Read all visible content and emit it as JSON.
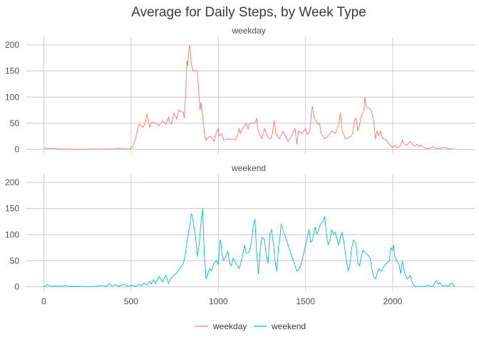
{
  "chart_data": {
    "type": "line",
    "title": "Average for Daily Steps, by Week Type",
    "xlabel": "",
    "ylabel": "",
    "xlim": [
      0,
      2355
    ],
    "ylim": [
      0,
      210
    ],
    "x_ticks": [
      0,
      500,
      1000,
      1500,
      2000
    ],
    "y_ticks": [
      0,
      50,
      100,
      150,
      200
    ],
    "legend_position": "bottom",
    "colors": {
      "weekday": "#F8766D",
      "weekend": "#00BFC4"
    },
    "panels": [
      {
        "name": "weekday",
        "points": [
          [
            0,
            2.3
          ],
          [
            100,
            0.5
          ],
          [
            200,
            0.3
          ],
          [
            300,
            0.4
          ],
          [
            400,
            0.8
          ],
          [
            430,
            2.2
          ],
          [
            460,
            0.5
          ],
          [
            490,
            1.0
          ],
          [
            500,
            2.5
          ],
          [
            510,
            5
          ],
          [
            525,
            20
          ],
          [
            545,
            48
          ],
          [
            570,
            42
          ],
          [
            585,
            55
          ],
          [
            590,
            68
          ],
          [
            600,
            55
          ],
          [
            605,
            42
          ],
          [
            620,
            52
          ],
          [
            640,
            50
          ],
          [
            660,
            45
          ],
          [
            680,
            55
          ],
          [
            700,
            48
          ],
          [
            715,
            62
          ],
          [
            720,
            52
          ],
          [
            730,
            48
          ],
          [
            745,
            70
          ],
          [
            760,
            58
          ],
          [
            775,
            75
          ],
          [
            800,
            70
          ],
          [
            805,
            60
          ],
          [
            815,
            120
          ],
          [
            820,
            170
          ],
          [
            825,
            160
          ],
          [
            830,
            185
          ],
          [
            835,
            200
          ],
          [
            840,
            190
          ],
          [
            845,
            165
          ],
          [
            855,
            150
          ],
          [
            880,
            150
          ],
          [
            890,
            100
          ],
          [
            895,
            75
          ],
          [
            900,
            90
          ],
          [
            910,
            65
          ],
          [
            920,
            30
          ],
          [
            930,
            17
          ],
          [
            940,
            22
          ],
          [
            955,
            25
          ],
          [
            975,
            15
          ],
          [
            985,
            28
          ],
          [
            1000,
            40
          ],
          [
            1005,
            25
          ],
          [
            1020,
            30
          ],
          [
            1030,
            18
          ],
          [
            1060,
            20
          ],
          [
            1100,
            18
          ],
          [
            1120,
            40
          ],
          [
            1125,
            30
          ],
          [
            1140,
            40
          ],
          [
            1160,
            50
          ],
          [
            1170,
            38
          ],
          [
            1180,
            50
          ],
          [
            1210,
            50
          ],
          [
            1220,
            60
          ],
          [
            1225,
            40
          ],
          [
            1235,
            30
          ],
          [
            1250,
            20
          ],
          [
            1265,
            40
          ],
          [
            1285,
            22
          ],
          [
            1300,
            20
          ],
          [
            1310,
            30
          ],
          [
            1320,
            55
          ],
          [
            1330,
            30
          ],
          [
            1350,
            20
          ],
          [
            1370,
            35
          ],
          [
            1390,
            22
          ],
          [
            1400,
            15
          ],
          [
            1420,
            25
          ],
          [
            1440,
            40
          ],
          [
            1450,
            10
          ],
          [
            1460,
            35
          ],
          [
            1480,
            30
          ],
          [
            1500,
            40
          ],
          [
            1510,
            28
          ],
          [
            1525,
            35
          ],
          [
            1535,
            75
          ],
          [
            1540,
            82
          ],
          [
            1550,
            60
          ],
          [
            1570,
            48
          ],
          [
            1580,
            50
          ],
          [
            1590,
            30
          ],
          [
            1610,
            20
          ],
          [
            1630,
            25
          ],
          [
            1650,
            35
          ],
          [
            1670,
            30
          ],
          [
            1690,
            48
          ],
          [
            1700,
            70
          ],
          [
            1710,
            35
          ],
          [
            1730,
            20
          ],
          [
            1760,
            25
          ],
          [
            1770,
            30
          ],
          [
            1780,
            55
          ],
          [
            1790,
            60
          ],
          [
            1800,
            35
          ],
          [
            1815,
            55
          ],
          [
            1820,
            65
          ],
          [
            1830,
            70
          ],
          [
            1835,
            75
          ],
          [
            1840,
            100
          ],
          [
            1845,
            85
          ],
          [
            1850,
            80
          ],
          [
            1870,
            78
          ],
          [
            1880,
            70
          ],
          [
            1890,
            55
          ],
          [
            1895,
            40
          ],
          [
            1900,
            20
          ],
          [
            1910,
            35
          ],
          [
            1920,
            25
          ],
          [
            1930,
            35
          ],
          [
            1940,
            22
          ],
          [
            1950,
            20
          ],
          [
            1960,
            18
          ],
          [
            1980,
            10
          ],
          [
            2000,
            3
          ],
          [
            2010,
            8
          ],
          [
            2020,
            3
          ],
          [
            2040,
            5
          ],
          [
            2050,
            12
          ],
          [
            2055,
            18
          ],
          [
            2065,
            10
          ],
          [
            2080,
            8
          ],
          [
            2100,
            15
          ],
          [
            2110,
            10
          ],
          [
            2125,
            6
          ],
          [
            2140,
            10
          ],
          [
            2150,
            5
          ],
          [
            2160,
            8
          ],
          [
            2180,
            3
          ],
          [
            2200,
            1
          ],
          [
            2215,
            2
          ],
          [
            2230,
            5
          ],
          [
            2250,
            1
          ],
          [
            2275,
            2
          ],
          [
            2295,
            3
          ],
          [
            2315,
            2
          ],
          [
            2335,
            0.5
          ],
          [
            2355,
            0.3
          ]
        ]
      },
      {
        "name": "weekend",
        "points": [
          [
            0,
            0.2
          ],
          [
            20,
            4
          ],
          [
            40,
            0.5
          ],
          [
            80,
            2
          ],
          [
            100,
            0.4
          ],
          [
            120,
            3
          ],
          [
            150,
            0.5
          ],
          [
            200,
            1
          ],
          [
            250,
            0.4
          ],
          [
            300,
            1
          ],
          [
            330,
            3
          ],
          [
            360,
            0.5
          ],
          [
            375,
            6
          ],
          [
            390,
            1
          ],
          [
            410,
            4
          ],
          [
            430,
            1
          ],
          [
            460,
            5
          ],
          [
            480,
            1
          ],
          [
            500,
            3
          ],
          [
            530,
            0.5
          ],
          [
            545,
            5
          ],
          [
            560,
            2
          ],
          [
            575,
            7
          ],
          [
            590,
            3
          ],
          [
            605,
            10
          ],
          [
            615,
            5
          ],
          [
            630,
            14
          ],
          [
            640,
            6
          ],
          [
            660,
            20
          ],
          [
            680,
            9
          ],
          [
            700,
            22
          ],
          [
            715,
            6
          ],
          [
            725,
            15
          ],
          [
            740,
            20
          ],
          [
            760,
            26
          ],
          [
            780,
            35
          ],
          [
            800,
            45
          ],
          [
            810,
            60
          ],
          [
            820,
            85
          ],
          [
            830,
            105
          ],
          [
            840,
            125
          ],
          [
            845,
            140
          ],
          [
            850,
            138
          ],
          [
            860,
            115
          ],
          [
            870,
            95
          ],
          [
            880,
            58
          ],
          [
            890,
            80
          ],
          [
            900,
            120
          ],
          [
            905,
            135
          ],
          [
            910,
            150
          ],
          [
            915,
            105
          ],
          [
            920,
            60
          ],
          [
            925,
            40
          ],
          [
            930,
            15
          ],
          [
            940,
            25
          ],
          [
            950,
            35
          ],
          [
            960,
            30
          ],
          [
            975,
            45
          ],
          [
            990,
            50
          ],
          [
            1000,
            42
          ],
          [
            1010,
            90
          ],
          [
            1015,
            85
          ],
          [
            1020,
            65
          ],
          [
            1030,
            50
          ],
          [
            1045,
            60
          ],
          [
            1055,
            68
          ],
          [
            1065,
            45
          ],
          [
            1075,
            40
          ],
          [
            1085,
            55
          ],
          [
            1100,
            45
          ],
          [
            1120,
            35
          ],
          [
            1140,
            60
          ],
          [
            1150,
            80
          ],
          [
            1160,
            65
          ],
          [
            1175,
            65
          ],
          [
            1190,
            85
          ],
          [
            1200,
            115
          ],
          [
            1210,
            130
          ],
          [
            1220,
            65
          ],
          [
            1230,
            25
          ],
          [
            1240,
            70
          ],
          [
            1250,
            95
          ],
          [
            1265,
            90
          ],
          [
            1275,
            60
          ],
          [
            1285,
            45
          ],
          [
            1295,
            100
          ],
          [
            1305,
            110
          ],
          [
            1315,
            85
          ],
          [
            1325,
            50
          ],
          [
            1335,
            30
          ],
          [
            1345,
            75
          ],
          [
            1355,
            100
          ],
          [
            1360,
            120
          ],
          [
            1375,
            105
          ],
          [
            1390,
            90
          ],
          [
            1405,
            75
          ],
          [
            1420,
            60
          ],
          [
            1435,
            45
          ],
          [
            1450,
            30
          ],
          [
            1465,
            35
          ],
          [
            1480,
            50
          ],
          [
            1490,
            65
          ],
          [
            1500,
            80
          ],
          [
            1510,
            95
          ],
          [
            1520,
            110
          ],
          [
            1530,
            85
          ],
          [
            1540,
            90
          ],
          [
            1555,
            115
          ],
          [
            1565,
            100
          ],
          [
            1575,
            110
          ],
          [
            1585,
            120
          ],
          [
            1600,
            125
          ],
          [
            1610,
            135
          ],
          [
            1620,
            100
          ],
          [
            1630,
            80
          ],
          [
            1640,
            90
          ],
          [
            1650,
            110
          ],
          [
            1660,
            100
          ],
          [
            1670,
            105
          ],
          [
            1690,
            80
          ],
          [
            1700,
            95
          ],
          [
            1710,
            105
          ],
          [
            1720,
            85
          ],
          [
            1735,
            50
          ],
          [
            1745,
            30
          ],
          [
            1755,
            45
          ],
          [
            1765,
            75
          ],
          [
            1775,
            90
          ],
          [
            1790,
            80
          ],
          [
            1800,
            45
          ],
          [
            1810,
            40
          ],
          [
            1820,
            60
          ],
          [
            1830,
            70
          ],
          [
            1845,
            65
          ],
          [
            1860,
            60
          ],
          [
            1870,
            55
          ],
          [
            1880,
            35
          ],
          [
            1890,
            20
          ],
          [
            1900,
            15
          ],
          [
            1910,
            25
          ],
          [
            1920,
            35
          ],
          [
            1935,
            30
          ],
          [
            1950,
            40
          ],
          [
            1965,
            45
          ],
          [
            1980,
            50
          ],
          [
            1990,
            75
          ],
          [
            1998,
            70
          ],
          [
            2005,
            80
          ],
          [
            2010,
            60
          ],
          [
            2020,
            50
          ],
          [
            2035,
            45
          ],
          [
            2045,
            25
          ],
          [
            2055,
            50
          ],
          [
            2065,
            30
          ],
          [
            2075,
            20
          ],
          [
            2085,
            15
          ],
          [
            2100,
            22
          ],
          [
            2110,
            10
          ],
          [
            2120,
            3
          ],
          [
            2130,
            0.5
          ],
          [
            2160,
            0.5
          ],
          [
            2180,
            1
          ],
          [
            2200,
            3
          ],
          [
            2210,
            1
          ],
          [
            2230,
            0.5
          ],
          [
            2250,
            12
          ],
          [
            2260,
            5
          ],
          [
            2270,
            8
          ],
          [
            2280,
            3
          ],
          [
            2290,
            1
          ],
          [
            2300,
            3
          ],
          [
            2320,
            1
          ],
          [
            2330,
            6
          ],
          [
            2340,
            7
          ],
          [
            2355,
            0.1
          ]
        ]
      }
    ]
  }
}
